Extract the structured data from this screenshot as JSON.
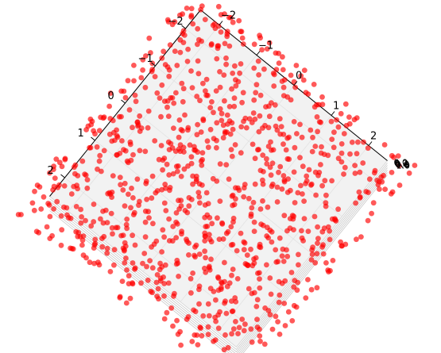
{
  "chart_data": {
    "type": "scatter",
    "projection": "3d",
    "view": "top-down (rotated)",
    "title": "",
    "xlabel": "",
    "ylabel": "",
    "zlabel": "",
    "xlim": [
      -2.5,
      2.5
    ],
    "ylim": [
      -2.5,
      2.5
    ],
    "x_ticks": [
      "−2",
      "−1",
      "0",
      "1",
      "2"
    ],
    "y_ticks": [
      "−2",
      "−1",
      "0",
      "1",
      "2"
    ],
    "z_ticks": [
      "0.0",
      "0.2",
      "0.4",
      "0.6",
      "0.8",
      "1.0"
    ],
    "marker_color": "#ff0000",
    "marker_alpha": 0.65,
    "pane_color": "#f2f2f2",
    "grid": true,
    "point_count_estimate": 1000,
    "distribution": "approximately uniform random in x and y over about [-2.8, 2.8], z in [0, 1]"
  }
}
